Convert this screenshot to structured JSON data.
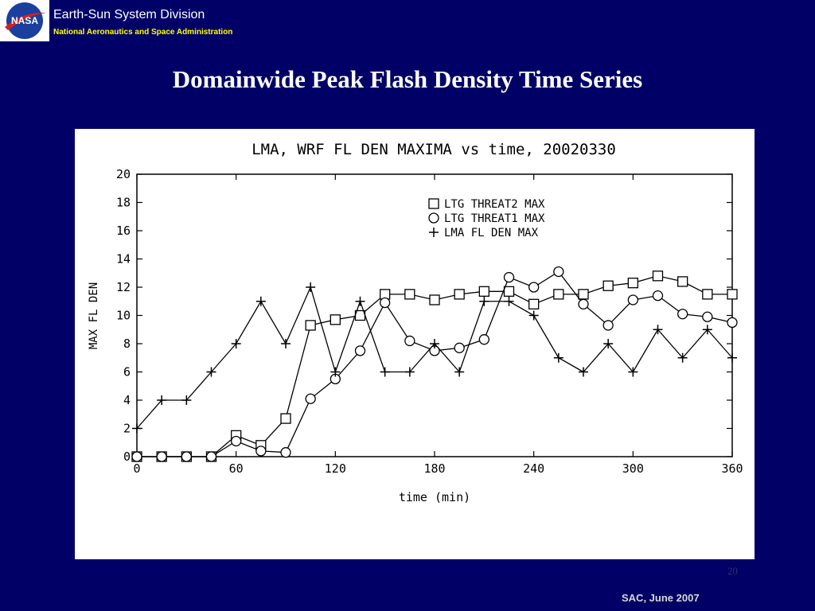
{
  "header": {
    "logo_text": "NASA",
    "division": "Earth-Sun System Division",
    "agency": "National Aeronautics and Space Administration"
  },
  "slide": {
    "title": "Domainwide Peak Flash Density Time Series",
    "page_number": "20",
    "footer": "SAC, June 2007"
  },
  "chart_data": {
    "type": "line",
    "title": "LMA, WRF FL DEN MAXIMA vs time, 20020330",
    "xlabel": "time (min)",
    "ylabel": "MAX FL DEN",
    "xlim": [
      0,
      360
    ],
    "ylim": [
      0,
      20
    ],
    "xticks": [
      0,
      60,
      120,
      180,
      240,
      300,
      360
    ],
    "yticks": [
      0,
      2,
      4,
      6,
      8,
      10,
      12,
      14,
      16,
      18,
      20
    ],
    "x": [
      0,
      15,
      30,
      45,
      60,
      75,
      90,
      105,
      120,
      135,
      150,
      165,
      180,
      195,
      210,
      225,
      240,
      255,
      270,
      285,
      300,
      315,
      330,
      345,
      360
    ],
    "legend_position": "top-right",
    "grid": false,
    "series": [
      {
        "name": "LTG THREAT2 MAX",
        "marker": "square",
        "values": [
          0,
          0,
          0,
          0,
          1.5,
          0.8,
          2.7,
          9.3,
          9.7,
          10.0,
          11.5,
          11.5,
          11.1,
          11.5,
          11.7,
          11.7,
          10.8,
          11.5,
          11.5,
          12.1,
          12.3,
          12.8,
          12.4,
          11.5,
          11.5
        ]
      },
      {
        "name": "LTG THREAT1 MAX",
        "marker": "circle",
        "values": [
          0,
          0,
          0,
          0,
          1.1,
          0.4,
          0.3,
          4.1,
          5.5,
          7.5,
          10.9,
          8.2,
          7.5,
          7.7,
          8.3,
          12.7,
          12.0,
          13.1,
          10.8,
          9.3,
          11.1,
          11.4,
          10.1,
          9.9,
          9.5
        ]
      },
      {
        "name": "LMA FL DEN MAX",
        "marker": "plus",
        "values": [
          2,
          4,
          4,
          6,
          8,
          11,
          8,
          12,
          6,
          11,
          6,
          6,
          8,
          6,
          11,
          11,
          10,
          7,
          6,
          8,
          6,
          9,
          7,
          9,
          7
        ]
      }
    ]
  }
}
